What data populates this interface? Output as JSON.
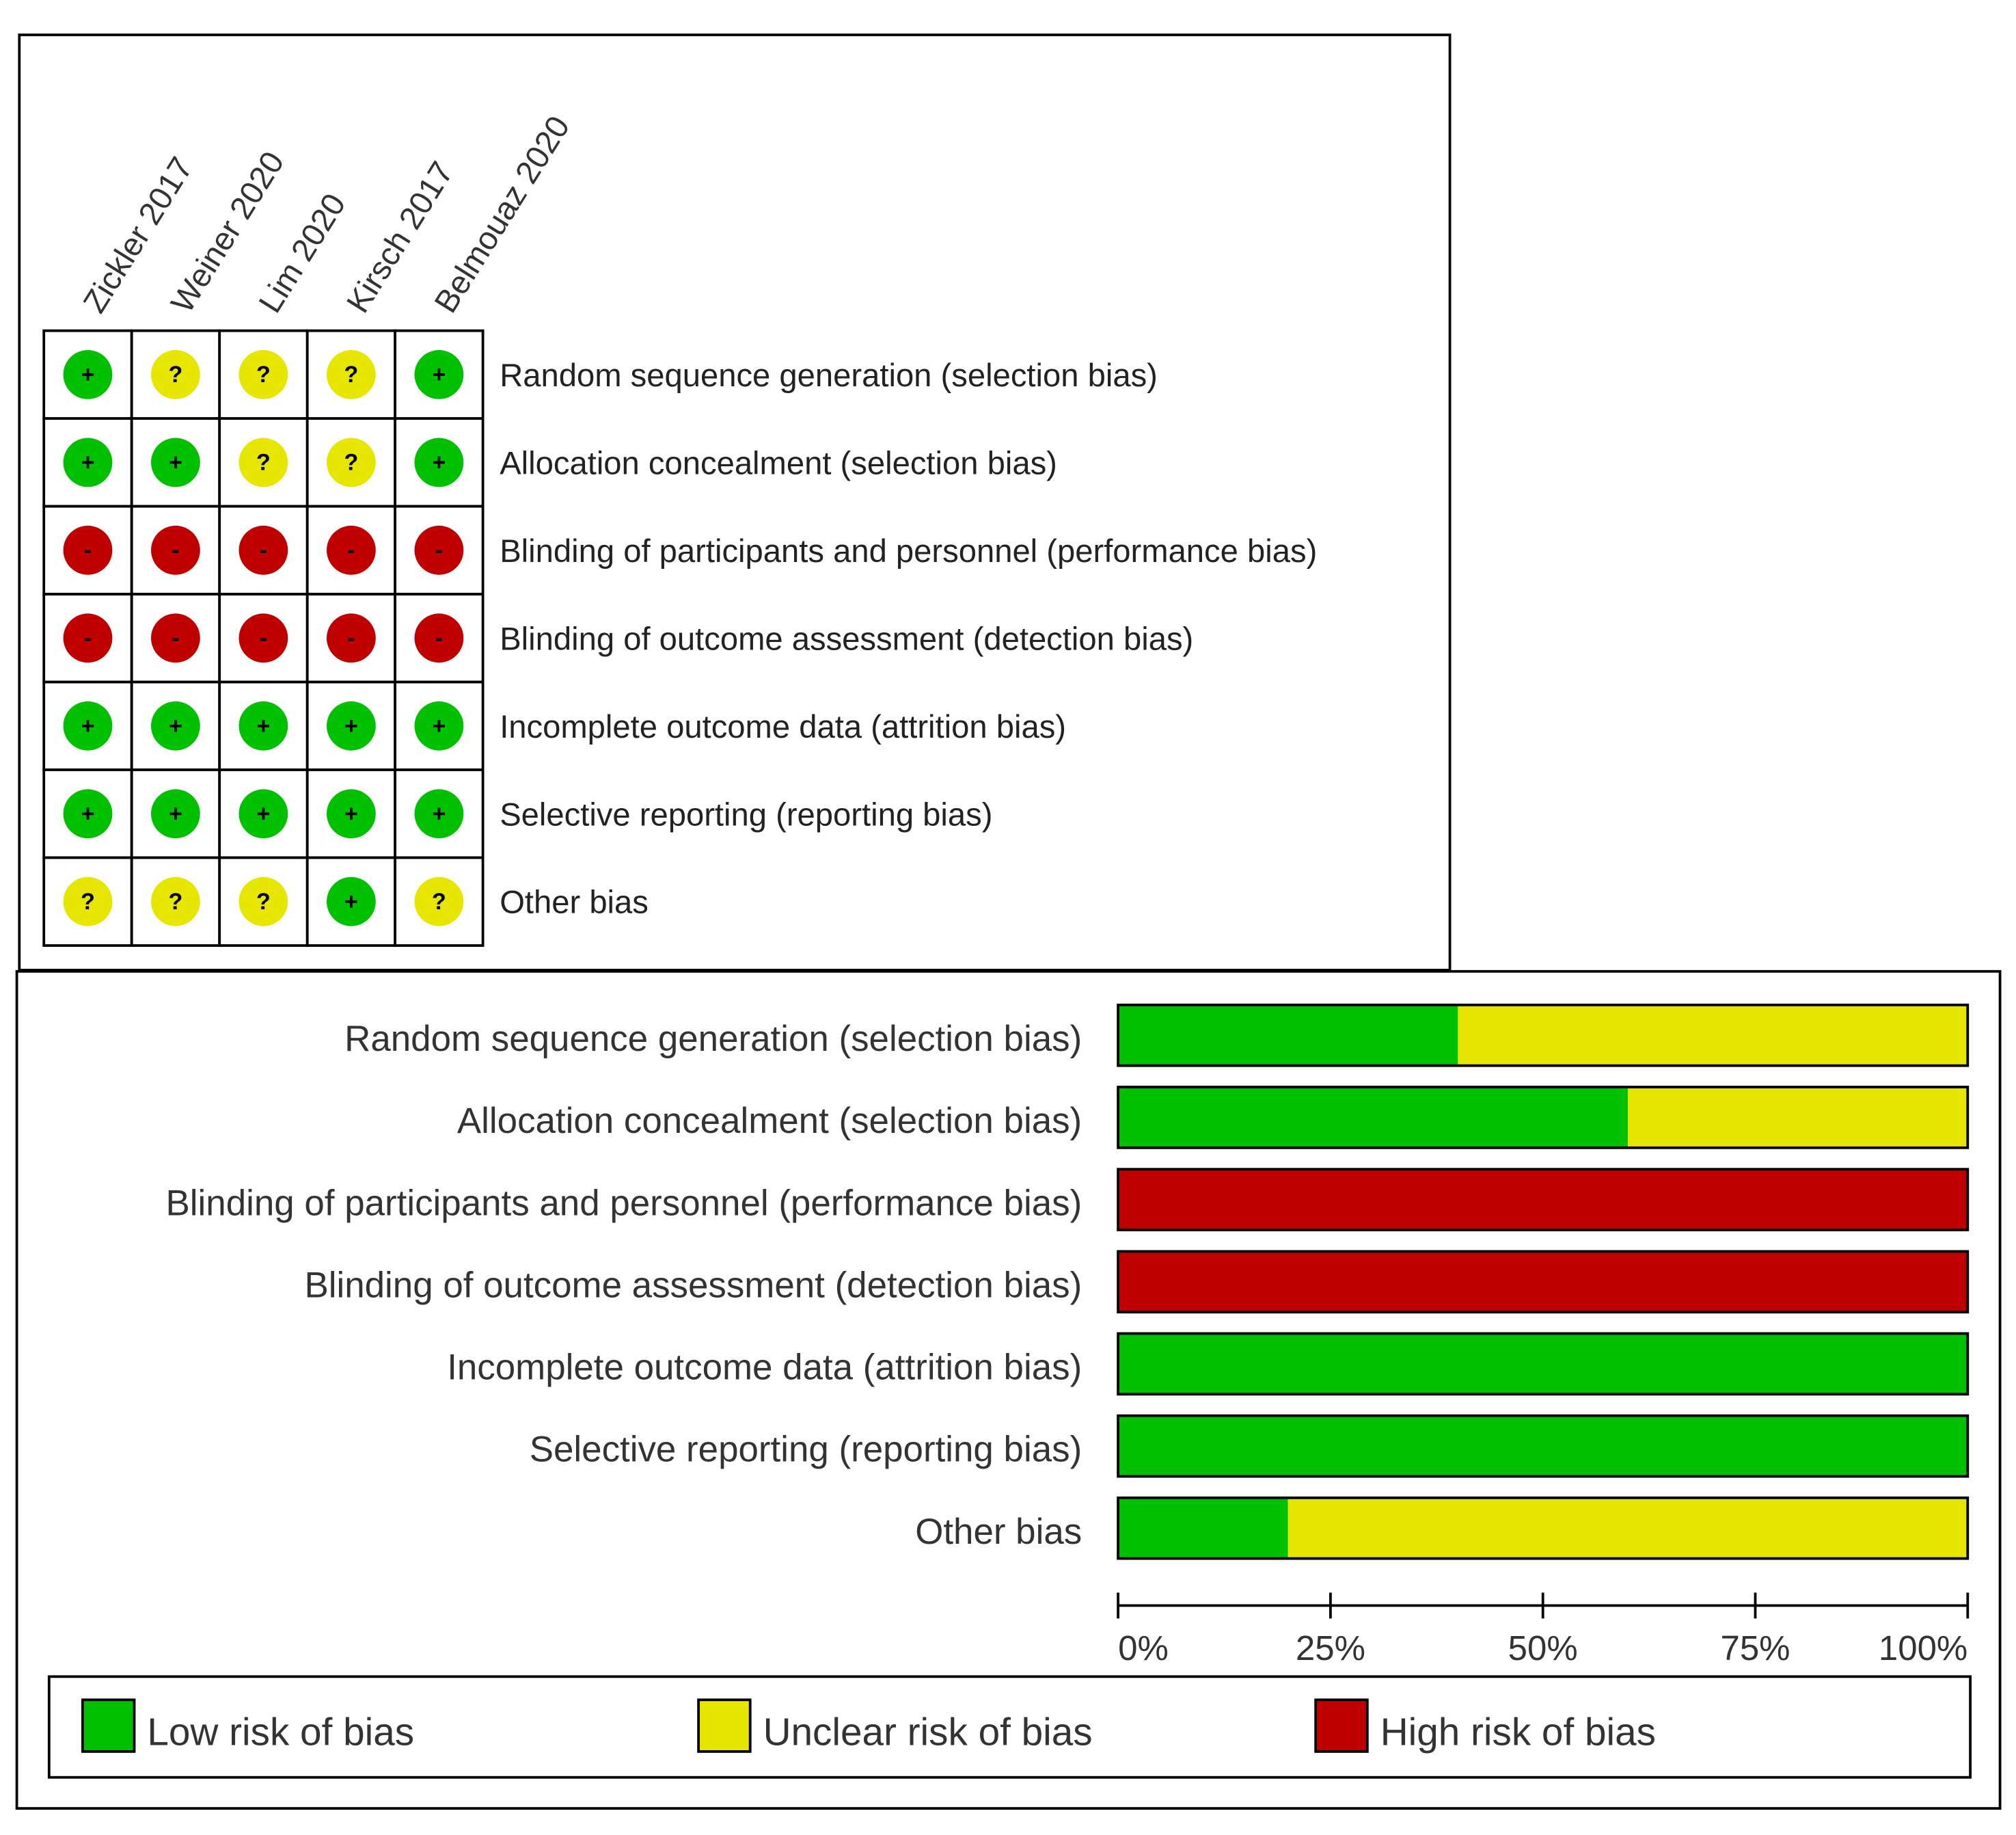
{
  "colors": {
    "low": "#00c000",
    "unclear": "#e6e600",
    "high": "#c00000",
    "border": "#000000",
    "label": "#333333"
  },
  "studies": [
    "Zickler 2017",
    "Weiner 2020",
    "Lim 2020",
    "Kirsch 2017",
    "Belmouaz 2020"
  ],
  "domains": [
    "Random sequence generation (selection bias)",
    "Allocation concealment (selection bias)",
    "Blinding of participants and personnel (performance bias)",
    "Blinding of outcome assessment (detection bias)",
    "Incomplete outcome data (attrition bias)",
    "Selective reporting (reporting bias)",
    "Other bias"
  ],
  "symbols": {
    "low": "+",
    "unclear": "?",
    "high": "-"
  },
  "chart_data": [
    {
      "type": "table",
      "columns": [
        "Zickler 2017",
        "Weiner 2020",
        "Lim 2020",
        "Kirsch 2017",
        "Belmouaz 2020"
      ],
      "rows": [
        {
          "domain": "Random sequence generation (selection bias)",
          "judgements": [
            "low",
            "unclear",
            "unclear",
            "unclear",
            "low"
          ]
        },
        {
          "domain": "Allocation concealment (selection bias)",
          "judgements": [
            "low",
            "low",
            "unclear",
            "unclear",
            "low"
          ]
        },
        {
          "domain": "Blinding of participants and personnel (performance bias)",
          "judgements": [
            "high",
            "high",
            "high",
            "high",
            "high"
          ]
        },
        {
          "domain": "Blinding of outcome assessment (detection bias)",
          "judgements": [
            "high",
            "high",
            "high",
            "high",
            "high"
          ]
        },
        {
          "domain": "Incomplete outcome data (attrition bias)",
          "judgements": [
            "low",
            "low",
            "low",
            "low",
            "low"
          ]
        },
        {
          "domain": "Selective reporting (reporting bias)",
          "judgements": [
            "low",
            "low",
            "low",
            "low",
            "low"
          ]
        },
        {
          "domain": "Other bias",
          "judgements": [
            "unclear",
            "unclear",
            "unclear",
            "low",
            "unclear"
          ]
        }
      ]
    },
    {
      "type": "bar",
      "orientation": "horizontal",
      "stacked": true,
      "categories": [
        "Random sequence generation (selection bias)",
        "Allocation concealment (selection bias)",
        "Blinding of participants and personnel (performance bias)",
        "Blinding of outcome assessment (detection bias)",
        "Incomplete outcome data (attrition bias)",
        "Selective reporting (reporting bias)",
        "Other bias"
      ],
      "series": [
        {
          "name": "Low risk of bias",
          "key": "low",
          "values": [
            40,
            60,
            0,
            0,
            100,
            100,
            20
          ]
        },
        {
          "name": "Unclear risk of bias",
          "key": "unclear",
          "values": [
            60,
            40,
            0,
            0,
            0,
            0,
            80
          ]
        },
        {
          "name": "High risk of bias",
          "key": "high",
          "values": [
            0,
            0,
            100,
            100,
            0,
            0,
            0
          ]
        }
      ],
      "xlim": [
        0,
        100
      ],
      "xticks": [
        "0%",
        "25%",
        "50%",
        "75%",
        "100%"
      ],
      "legend_position": "bottom"
    }
  ]
}
